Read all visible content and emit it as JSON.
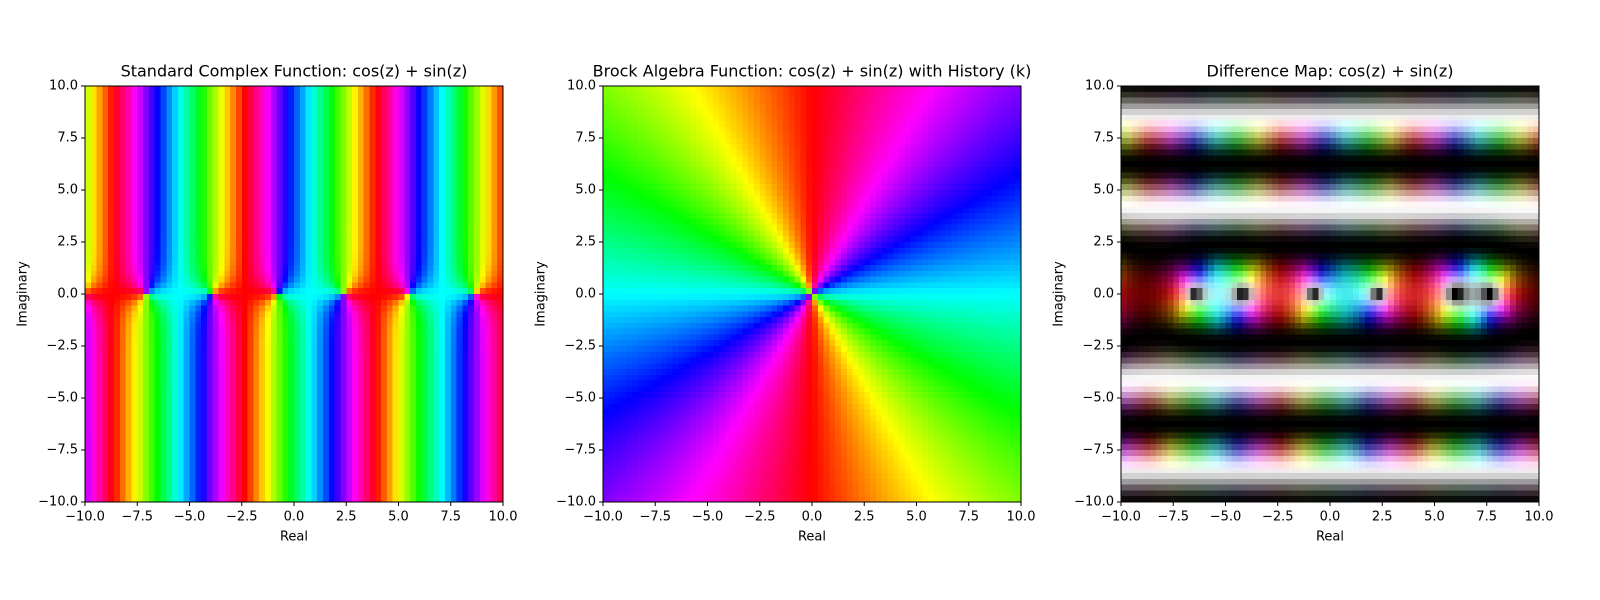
{
  "chart_data": [
    {
      "type": "image",
      "title": "Standard Complex Function: cos(z) + sin(z)",
      "xlabel": "Real",
      "ylabel": "Imaginary",
      "xlim": [
        -10,
        10
      ],
      "ylim": [
        -10,
        10
      ],
      "xticks": [
        {
          "value": -10,
          "label": "−10.0"
        },
        {
          "value": -7.5,
          "label": "−7.5"
        },
        {
          "value": -5,
          "label": "−5.0"
        },
        {
          "value": -2.5,
          "label": "−2.5"
        },
        {
          "value": 0,
          "label": "0.0"
        },
        2.5,
        {
          "value": 5,
          "label": "5.0"
        },
        7.5,
        {
          "value": 10,
          "label": "10.0"
        }
      ],
      "yticks": [
        {
          "value": -10,
          "label": "−10.0"
        },
        {
          "value": -7.5,
          "label": "−7.5"
        },
        {
          "value": -5,
          "label": "−5.0"
        },
        {
          "value": -2.5,
          "label": "−2.5"
        },
        {
          "value": 0,
          "label": "0.0"
        },
        2.5,
        {
          "value": 5,
          "label": "5.0"
        },
        7.5,
        {
          "value": 10,
          "label": "10.0"
        }
      ]
    },
    {
      "type": "image",
      "title": "Brock Algebra Function: cos(z) + sin(z) with History (k)",
      "xlabel": "Real",
      "ylabel": "Imaginary",
      "xlim": [
        -10,
        10
      ],
      "ylim": [
        -10,
        10
      ],
      "xticks": [
        {
          "value": -10,
          "label": "−10.0"
        },
        {
          "value": -7.5,
          "label": "−7.5"
        },
        {
          "value": -5,
          "label": "−5.0"
        },
        {
          "value": -2.5,
          "label": "−2.5"
        },
        {
          "value": 0,
          "label": "0.0"
        },
        2.5,
        {
          "value": 5,
          "label": "5.0"
        },
        7.5,
        {
          "value": 10,
          "label": "10.0"
        }
      ],
      "yticks": [
        {
          "value": -10,
          "label": "−10.0"
        },
        {
          "value": -7.5,
          "label": "−7.5"
        },
        {
          "value": -5,
          "label": "−5.0"
        },
        {
          "value": -2.5,
          "label": "−2.5"
        },
        {
          "value": 0,
          "label": "0.0"
        },
        2.5,
        {
          "value": 5,
          "label": "5.0"
        },
        7.5,
        {
          "value": 10,
          "label": "10.0"
        }
      ]
    },
    {
      "type": "image",
      "title": "Difference Map: cos(z) + sin(z)",
      "xlabel": "Real",
      "ylabel": "Imaginary",
      "xlim": [
        -10,
        10
      ],
      "ylim": [
        -10,
        10
      ],
      "xticks": [
        {
          "value": -10,
          "label": "−10.0"
        },
        {
          "value": -7.5,
          "label": "−7.5"
        },
        {
          "value": -5,
          "label": "−5.0"
        },
        {
          "value": -2.5,
          "label": "−2.5"
        },
        {
          "value": 0,
          "label": "0.0"
        },
        2.5,
        {
          "value": 5,
          "label": "5.0"
        },
        7.5,
        {
          "value": 10,
          "label": "10.0"
        }
      ],
      "yticks": [
        {
          "value": -10,
          "label": "−10.0"
        },
        {
          "value": -7.5,
          "label": "−7.5"
        },
        {
          "value": -5,
          "label": "−5.0"
        },
        {
          "value": -2.5,
          "label": "−2.5"
        },
        {
          "value": 0,
          "label": "0.0"
        },
        2.5,
        {
          "value": 5,
          "label": "5.0"
        },
        7.5,
        {
          "value": 10,
          "label": "10.0"
        }
      ]
    }
  ]
}
